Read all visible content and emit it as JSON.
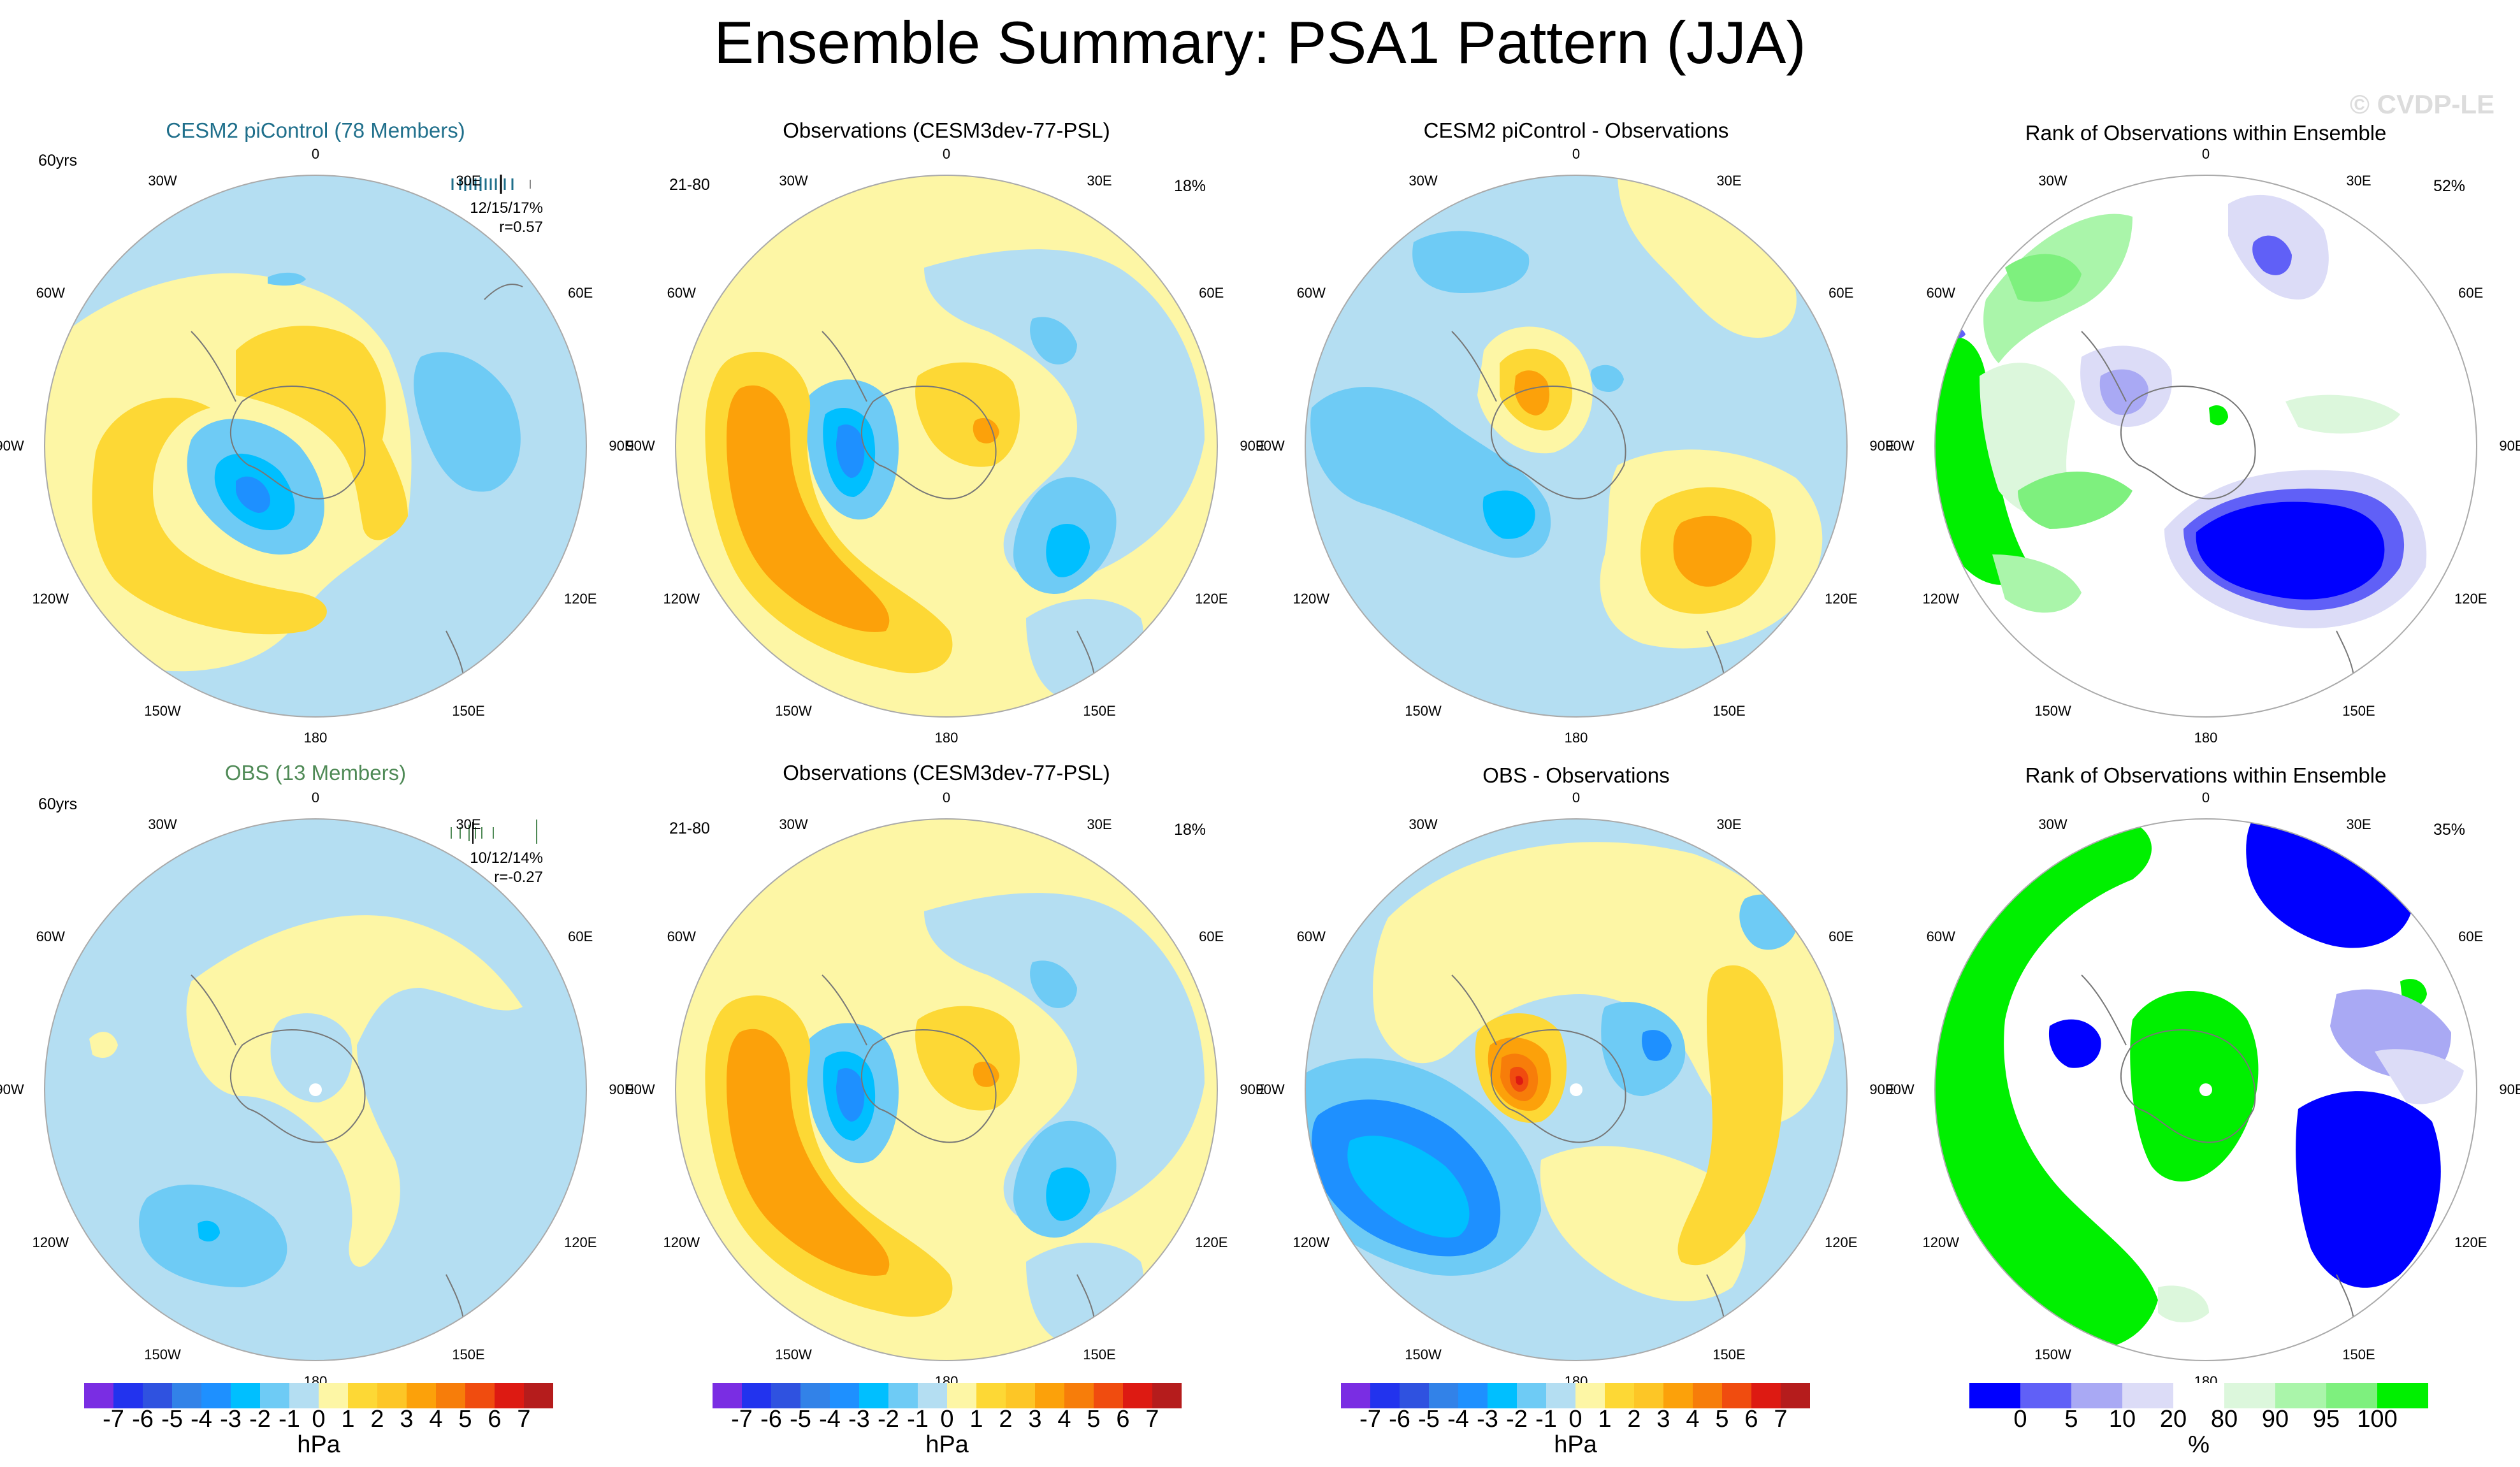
{
  "title": "Ensemble Summary: PSA1 Pattern (JJA)",
  "watermark": "© CVDP-LE",
  "colors": {
    "n7": "#7a2de3",
    "n6": "#2233ee",
    "n5": "#2f52e0",
    "n4": "#3282e8",
    "n3": "#1e90ff",
    "n2": "#00bfff",
    "n1": "#6ecbf5",
    "n0": "#b4def2",
    "p0": "#fdf6a5",
    "p1": "#fdd835",
    "p2": "#fdc626",
    "p3": "#fca10a",
    "p4": "#f77d0a",
    "p5": "#f04c0f",
    "p6": "#dd1a12",
    "p7": "#b51c1c",
    "p8": "#f7a8a8",
    "r0": "#0000ff",
    "r5": "#6060f7",
    "r10": "#a9a9f4",
    "r20": "#dcdcf7",
    "rmid": "#ffffff",
    "r80": "#dcf7dc",
    "r90": "#aaf5aa",
    "r95": "#7ef07e",
    "r100": "#00f000",
    "teal": "#1f6f8b",
    "green": "#4f8a56"
  },
  "lon_labels": [
    "0",
    "30E",
    "60E",
    "90E",
    "120E",
    "150E",
    "180",
    "150W",
    "120W",
    "90W",
    "60W",
    "30W"
  ],
  "panels": {
    "p1": {
      "title": "CESM2 piControl (78 Members)",
      "years": "60yrs",
      "stat1": "12/15/17%",
      "stat2": "r=0.57"
    },
    "p2": {
      "title": "Observations (CESM3dev-77-PSL)",
      "years": "21-80",
      "pct": "18%"
    },
    "p3": {
      "title": "CESM2 piControl - Observations"
    },
    "p4": {
      "title": "Rank of Observations within Ensemble",
      "pct": "52%"
    },
    "p5": {
      "title": "OBS (13 Members)",
      "years": "60yrs",
      "stat1": "10/12/14%",
      "stat2": "r=-0.27"
    },
    "p6": {
      "title": "Observations (CESM3dev-77-PSL)",
      "years": "21-80",
      "pct": "18%"
    },
    "p7": {
      "title": "OBS - Observations"
    },
    "p8": {
      "title": "Rank of Observations within Ensemble",
      "pct": "35%"
    }
  },
  "chart_data": [
    {
      "type": "heatmap",
      "id": "p1",
      "projection": "south polar stereographic",
      "title": "CESM2 piControl (78 Members)",
      "field": "sea level pressure anomaly",
      "units": "hPa",
      "range": [
        -7,
        7
      ],
      "features": [
        {
          "lon": "150W",
          "lat": "-55",
          "value": -3
        },
        {
          "lon": "130W",
          "lat": "-45",
          "value": 2
        },
        {
          "lon": "30W",
          "lat": "-40",
          "value": 2
        },
        {
          "lon": "90E",
          "lat": "-55",
          "value": -1.5
        },
        {
          "lon": "120E",
          "lat": "-40",
          "value": -0.5
        }
      ]
    },
    {
      "type": "heatmap",
      "id": "p2",
      "projection": "south polar stereographic",
      "title": "Observations (CESM3dev-77-PSL)",
      "field": "sea level pressure anomaly",
      "units": "hPa",
      "range": [
        -7,
        7
      ],
      "features": [
        {
          "lon": "90W",
          "lat": "-60",
          "value": -4
        },
        {
          "lon": "110W",
          "lat": "-45",
          "value": 3
        },
        {
          "lon": "30W",
          "lat": "-60",
          "value": 2
        },
        {
          "lon": "120E",
          "lat": "-55",
          "value": -3
        }
      ]
    },
    {
      "type": "heatmap",
      "id": "p3",
      "projection": "south polar stereographic",
      "title": "CESM2 piControl - Observations",
      "field": "difference",
      "units": "hPa",
      "range": [
        -7,
        7
      ],
      "features": [
        {
          "lon": "20W",
          "lat": "-70",
          "value": 4
        },
        {
          "lon": "150E",
          "lat": "-55",
          "value": 3
        },
        {
          "lon": "90W",
          "lat": "-55",
          "value": -1.5
        },
        {
          "lon": "120W",
          "lat": "-45",
          "value": -2
        }
      ]
    },
    {
      "type": "heatmap",
      "id": "p4",
      "projection": "south polar stereographic",
      "title": "Rank of Observations within Ensemble",
      "field": "rank",
      "units": "%",
      "pct_area": "52%",
      "features": [
        {
          "lon": "150E",
          "lat": "-50",
          "value": 0
        },
        {
          "lon": "90W",
          "lat": "-40",
          "value": 100
        }
      ]
    },
    {
      "type": "heatmap",
      "id": "p5",
      "projection": "south polar stereographic",
      "title": "OBS (13 Members)",
      "field": "sea level pressure anomaly",
      "units": "hPa",
      "range": [
        -7,
        7
      ],
      "features": [
        {
          "lon": "120W",
          "lat": "-45",
          "value": -2
        },
        {
          "lon": "0",
          "lat": "-50",
          "value": 0.5
        }
      ]
    },
    {
      "type": "heatmap",
      "id": "p6",
      "projection": "south polar stereographic",
      "title": "Observations (CESM3dev-77-PSL)",
      "field": "sea level pressure anomaly",
      "units": "hPa",
      "range": [
        -7,
        7
      ],
      "features": [
        {
          "lon": "90W",
          "lat": "-60",
          "value": -4
        },
        {
          "lon": "110W",
          "lat": "-45",
          "value": 3
        },
        {
          "lon": "30W",
          "lat": "-60",
          "value": 2
        },
        {
          "lon": "120E",
          "lat": "-55",
          "value": -3
        }
      ]
    },
    {
      "type": "heatmap",
      "id": "p7",
      "projection": "south polar stereographic",
      "title": "OBS - Observations",
      "field": "difference",
      "units": "hPa",
      "range": [
        -7,
        7
      ],
      "features": [
        {
          "lon": "45W",
          "lat": "-65",
          "value": 5
        },
        {
          "lon": "120W",
          "lat": "-45",
          "value": -4
        },
        {
          "lon": "90E",
          "lat": "-50",
          "value": 2
        }
      ]
    },
    {
      "type": "heatmap",
      "id": "p8",
      "projection": "south polar stereographic",
      "title": "Rank of Observations within Ensemble",
      "field": "rank",
      "units": "%",
      "pct_area": "35%",
      "features": [
        {
          "lon": "120E",
          "lat": "-50",
          "value": 0
        },
        {
          "lon": "120W",
          "lat": "-45",
          "value": 100
        }
      ]
    },
    {
      "type": "colorbar",
      "id": "cb-hpa",
      "units": "hPa",
      "tick_labels": [
        "-7",
        "-6",
        "-5",
        "-4",
        "-3",
        "-2",
        "-1",
        "0",
        "1",
        "2",
        "3",
        "4",
        "5",
        "6",
        "7"
      ]
    },
    {
      "type": "colorbar",
      "id": "cb-rank",
      "units": "%",
      "tick_labels": [
        "0",
        "5",
        "10",
        "20",
        "80",
        "90",
        "95",
        "100"
      ]
    }
  ]
}
